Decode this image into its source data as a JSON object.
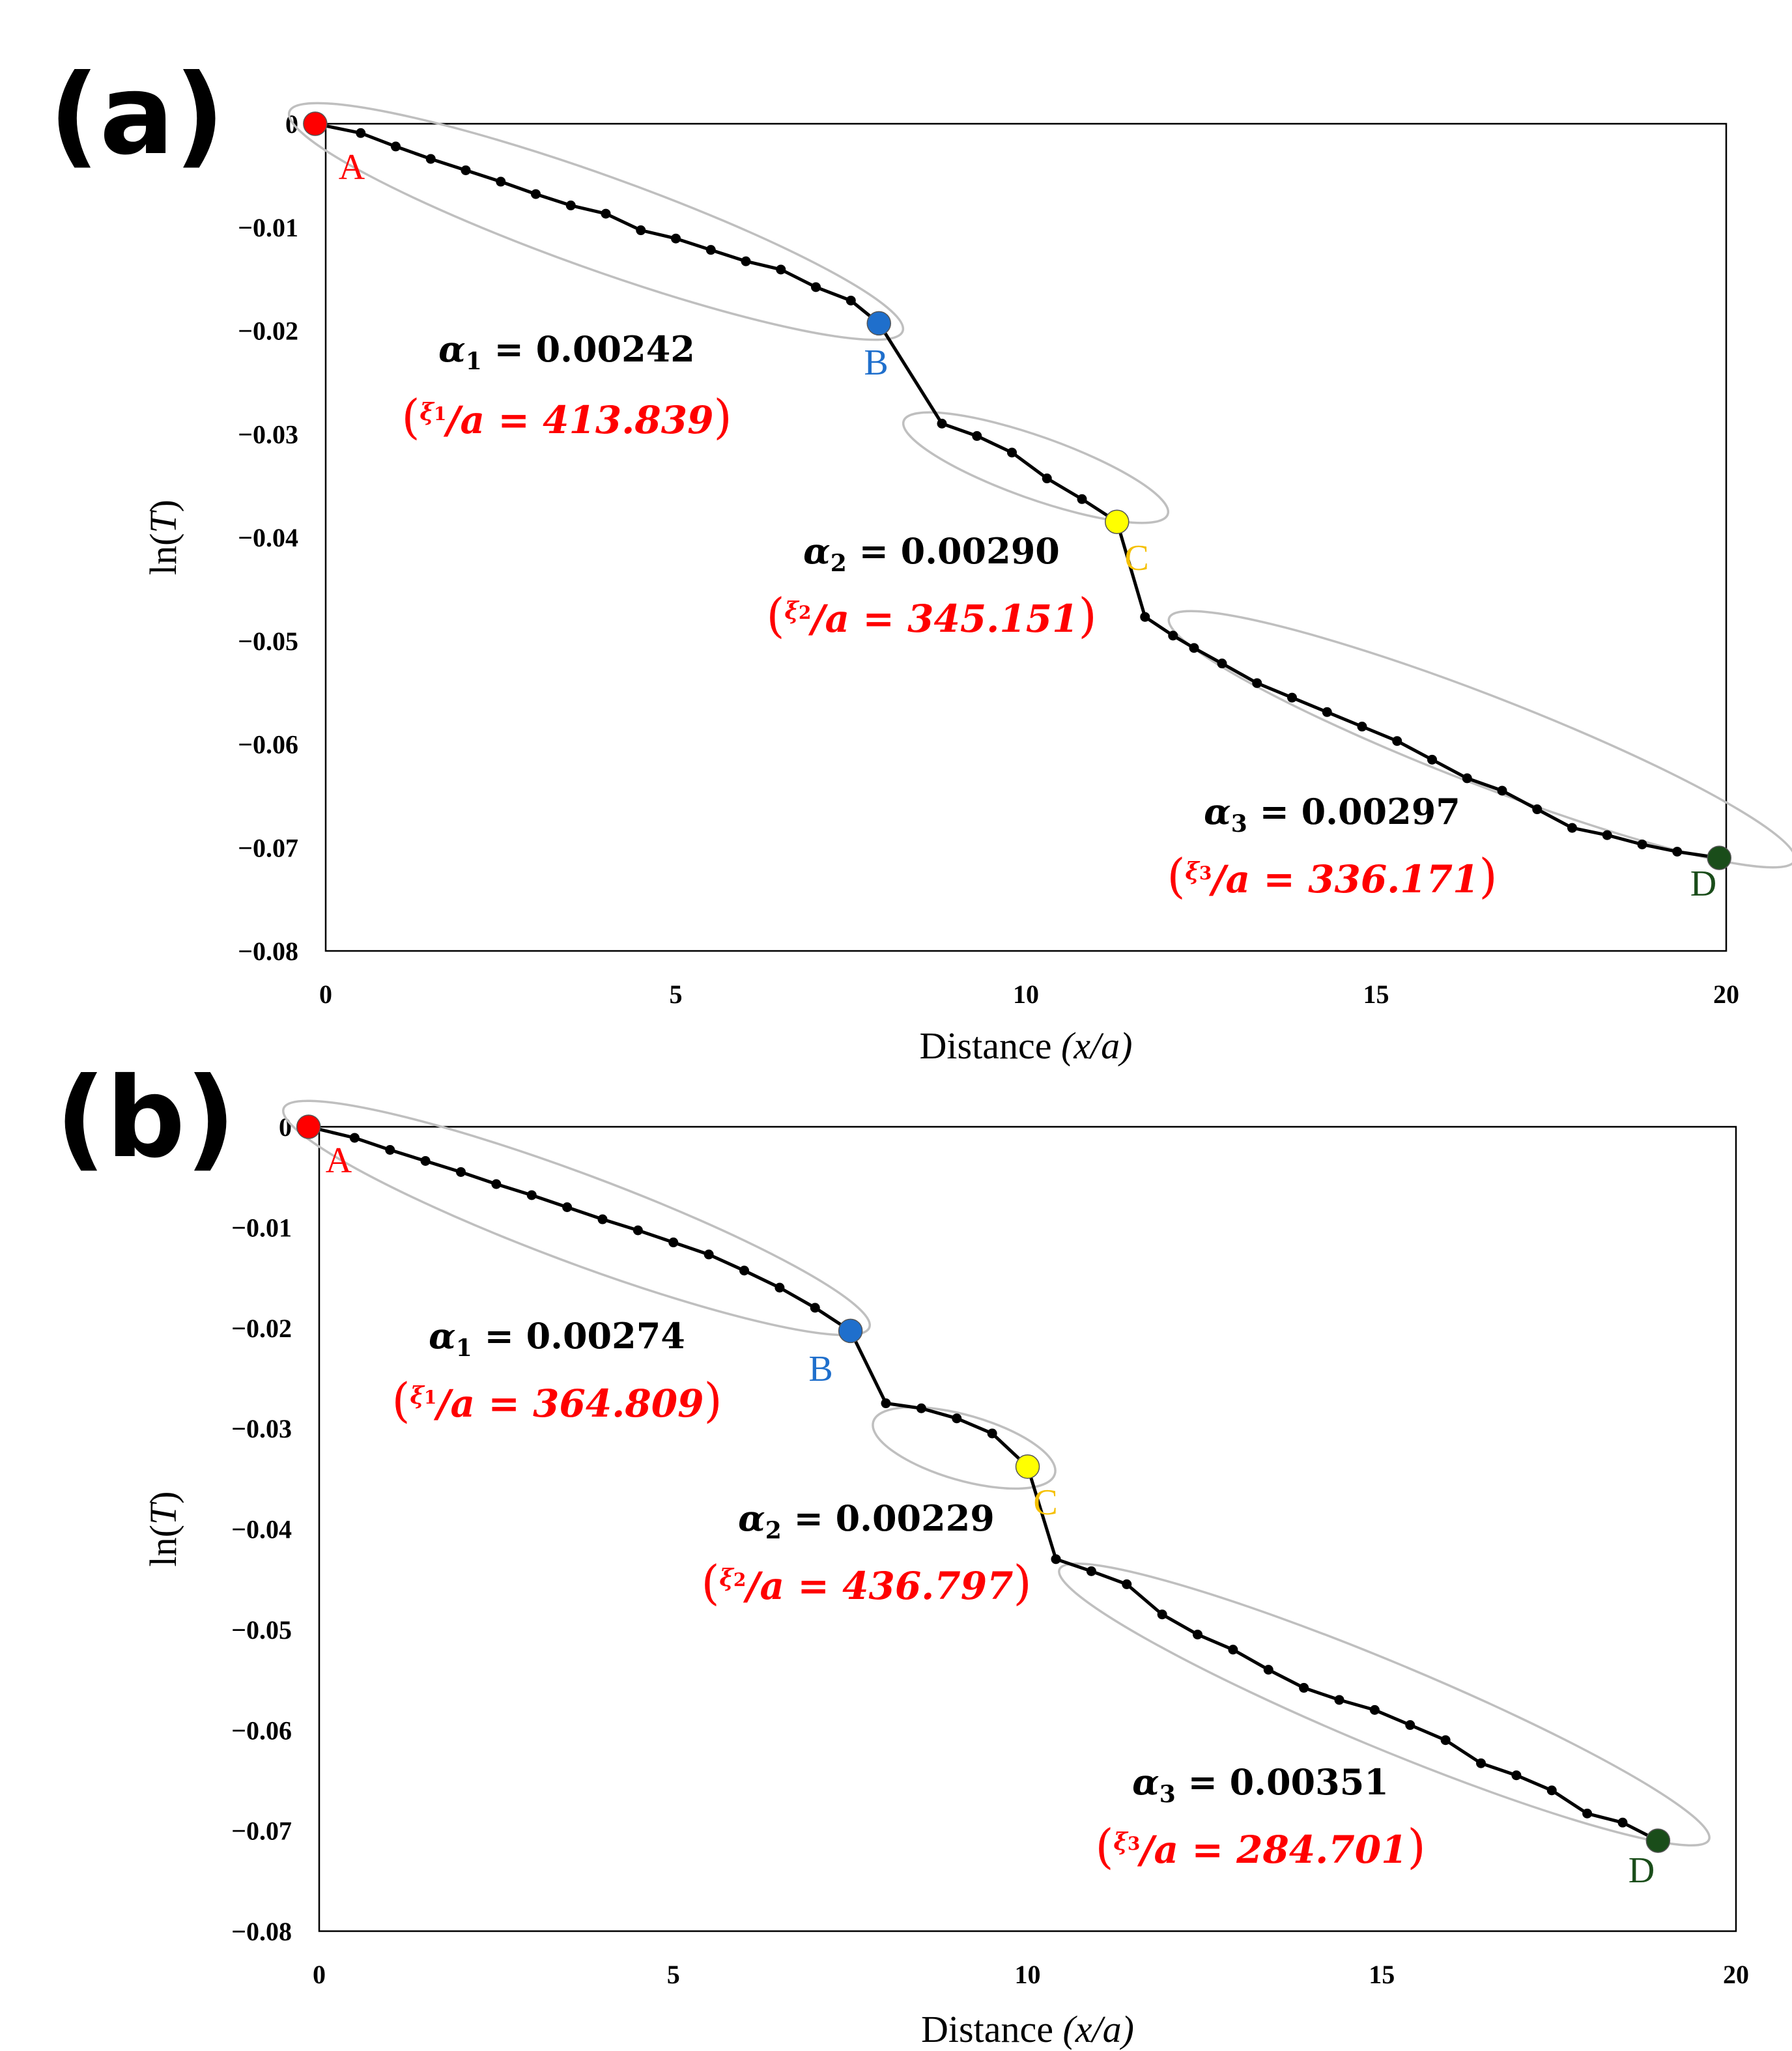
{
  "chart_data": [
    {
      "panel": "(a)",
      "type": "line",
      "xlabel_prefix": "Distance ",
      "xlabel_var": "(x/a)",
      "ylabel_prefix": "ln(",
      "ylabel_var": "T",
      "ylabel_suffix": ")",
      "xlim": [
        0,
        20
      ],
      "ylim": [
        -0.08,
        0
      ],
      "xticks": [
        "0",
        "5",
        "10",
        "15",
        "20"
      ],
      "yticks": [
        "0",
        "−0.01",
        "−0.02",
        "−0.03",
        "−0.04",
        "−0.05",
        "−0.06",
        "−0.07",
        "−0.08"
      ],
      "x": [
        -0.15,
        0.5,
        1.0,
        1.5,
        2.0,
        2.5,
        3.0,
        3.5,
        4.0,
        4.5,
        5.0,
        5.5,
        6.0,
        6.5,
        7.0,
        7.5,
        7.9,
        8.8,
        9.3,
        9.8,
        10.3,
        10.8,
        11.3,
        11.7,
        12.1,
        12.4,
        12.8,
        13.3,
        13.8,
        14.3,
        14.8,
        15.3,
        15.8,
        16.3,
        16.8,
        17.3,
        17.8,
        18.3,
        18.8,
        19.3,
        19.9
      ],
      "y": [
        0,
        -0.0009,
        -0.0022,
        -0.0034,
        -0.0045,
        -0.0056,
        -0.0068,
        -0.0079,
        -0.0087,
        -0.0103,
        -0.0111,
        -0.0122,
        -0.0133,
        -0.0141,
        -0.0158,
        -0.0171,
        -0.0193,
        -0.029,
        -0.0302,
        -0.0318,
        -0.0343,
        -0.0363,
        -0.0385,
        -0.0477,
        -0.0495,
        -0.0507,
        -0.0522,
        -0.0541,
        -0.0555,
        -0.0569,
        -0.0583,
        -0.0597,
        -0.0615,
        -0.0633,
        -0.0645,
        -0.0663,
        -0.0681,
        -0.0688,
        -0.0697,
        -0.0704,
        -0.071
      ],
      "key_points": [
        {
          "label": "A",
          "index": 0,
          "color": "#ff0000"
        },
        {
          "label": "B",
          "index": 16,
          "color": "#1f6fcc"
        },
        {
          "label": "C",
          "index": 22,
          "color": "#ffff00"
        },
        {
          "label": "D",
          "index": 40,
          "color": "#1a4d1a"
        }
      ],
      "point_label_colors": {
        "A": "#ff0000",
        "B": "#1f6fcc",
        "C": "#f5c000",
        "D": "#1a4d1a"
      },
      "annotations": [
        {
          "alpha_sym": "α",
          "sub": "1",
          "alpha_text": " = 0.00242",
          "xi_sym": "ξ",
          "xi_text": "/a = 413.839"
        },
        {
          "alpha_sym": "α",
          "sub": "2",
          "alpha_text": " = 0.00290",
          "xi_sym": "ξ",
          "xi_text": "/a = 345.151"
        },
        {
          "alpha_sym": "α",
          "sub": "3",
          "alpha_text": " = 0.00297",
          "xi_sym": "ξ",
          "xi_text": "/a = 336.171"
        }
      ],
      "colors": {
        "line": "#000000",
        "ellipse": "#bfbfbf",
        "xi": "#ff0000"
      }
    },
    {
      "panel": "(b)",
      "type": "line",
      "xlabel_prefix": "Distance ",
      "xlabel_var": "(x/a)",
      "ylabel_prefix": "ln(",
      "ylabel_var": "T",
      "ylabel_suffix": ")",
      "xlim": [
        0,
        20
      ],
      "ylim": [
        -0.08,
        0
      ],
      "xticks": [
        "0",
        "5",
        "10",
        "15",
        "20"
      ],
      "yticks": [
        "0",
        "−0.01",
        "−0.02",
        "−0.03",
        "−0.04",
        "−0.05",
        "−0.06",
        "−0.07",
        "−0.08"
      ],
      "x": [
        -0.15,
        0.5,
        1.0,
        1.5,
        2.0,
        2.5,
        3.0,
        3.5,
        4.0,
        4.5,
        5.0,
        5.5,
        6.0,
        6.5,
        7.0,
        7.5,
        8.0,
        8.5,
        9.0,
        9.5,
        10.0,
        10.4,
        10.9,
        11.4,
        11.9,
        12.4,
        12.9,
        13.4,
        13.9,
        14.4,
        14.9,
        15.4,
        15.9,
        16.4,
        16.9,
        17.4,
        17.9,
        18.4,
        18.9
      ],
      "y": [
        0,
        -0.0011,
        -0.0023,
        -0.0034,
        -0.0045,
        -0.0057,
        -0.0068,
        -0.008,
        -0.0092,
        -0.0103,
        -0.0115,
        -0.0127,
        -0.0143,
        -0.016,
        -0.018,
        -0.0203,
        -0.0275,
        -0.028,
        -0.029,
        -0.0305,
        -0.0338,
        -0.043,
        -0.0442,
        -0.0455,
        -0.0485,
        -0.0505,
        -0.052,
        -0.054,
        -0.0558,
        -0.057,
        -0.058,
        -0.0595,
        -0.061,
        -0.0633,
        -0.0645,
        -0.066,
        -0.0683,
        -0.0692,
        -0.071
      ],
      "key_points": [
        {
          "label": "A",
          "index": 0,
          "color": "#ff0000"
        },
        {
          "label": "B",
          "index": 15,
          "color": "#1f6fcc"
        },
        {
          "label": "C",
          "index": 20,
          "color": "#ffff00"
        },
        {
          "label": "D",
          "index": 38,
          "color": "#1a4d1a"
        }
      ],
      "point_label_colors": {
        "A": "#ff0000",
        "B": "#1f6fcc",
        "C": "#f5c000",
        "D": "#1a4d1a"
      },
      "annotations": [
        {
          "alpha_sym": "α",
          "sub": "1",
          "alpha_text": " = 0.00274",
          "xi_sym": "ξ",
          "xi_text": "/a = 364.809"
        },
        {
          "alpha_sym": "α",
          "sub": "2",
          "alpha_text": " = 0.00229",
          "xi_sym": "ξ",
          "xi_text": "/a = 436.797"
        },
        {
          "alpha_sym": "α",
          "sub": "3",
          "alpha_text": " = 0.00351",
          "xi_sym": "ξ",
          "xi_text": "/a = 284.701"
        }
      ],
      "colors": {
        "line": "#000000",
        "ellipse": "#bfbfbf",
        "xi": "#ff0000"
      }
    }
  ]
}
